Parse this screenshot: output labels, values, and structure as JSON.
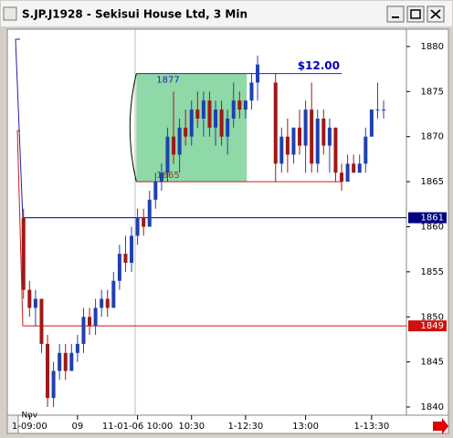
{
  "window": {
    "title": "S.JP.J1928 - Sekisui House Ltd, 3 Min"
  },
  "chart_data": {
    "type": "candlestick",
    "x": [
      0,
      1,
      2,
      3,
      4,
      5,
      6,
      7,
      8,
      9,
      10,
      11,
      12,
      13,
      14,
      15,
      16,
      17,
      18,
      19,
      20,
      21,
      22,
      23,
      24,
      25,
      26,
      27,
      28,
      29,
      30,
      31,
      32,
      33,
      34,
      35,
      36,
      37,
      38,
      39,
      42,
      43,
      44,
      45,
      46,
      47,
      48,
      49,
      50,
      51,
      52,
      53,
      54,
      55,
      56,
      57,
      58,
      59,
      60
    ],
    "open": [
      1861,
      1853,
      1851,
      1852,
      1847,
      1841,
      1844,
      1846,
      1844,
      1846,
      1847,
      1850,
      1849,
      1851,
      1852,
      1851,
      1854,
      1857,
      1856,
      1859,
      1861,
      1860,
      1863,
      1865,
      1866,
      1870,
      1868,
      1871,
      1870,
      1873,
      1872,
      1874,
      1871,
      1873,
      1870,
      1872,
      1874,
      1873,
      1874,
      1876,
      1876,
      1867,
      1870,
      1868,
      1871,
      1869,
      1873,
      1867,
      1872,
      1869,
      1871,
      1866,
      1865,
      1867,
      1866,
      1867,
      1870,
      1873,
      1873
    ],
    "high": [
      1862,
      1854,
      1853,
      1852,
      1848,
      1845,
      1847,
      1847,
      1847,
      1848,
      1851,
      1851,
      1852,
      1853,
      1853,
      1855,
      1858,
      1859,
      1860,
      1862,
      1862,
      1864,
      1866,
      1867,
      1871,
      1875,
      1872,
      1873,
      1874,
      1875,
      1875,
      1875,
      1874,
      1874,
      1873,
      1876,
      1875,
      1874,
      1877,
      1879,
      1877,
      1871,
      1872,
      1871,
      1873,
      1874,
      1876,
      1873,
      1873,
      1872,
      1871,
      1867,
      1868,
      1868,
      1868,
      1871,
      1873,
      1876,
      1874
    ],
    "low": [
      1852,
      1850,
      1849,
      1846,
      1840,
      1840,
      1843,
      1843,
      1844,
      1845,
      1846,
      1848,
      1848,
      1850,
      1850,
      1851,
      1853,
      1855,
      1855,
      1858,
      1859,
      1860,
      1862,
      1864,
      1865,
      1867,
      1866,
      1869,
      1869,
      1871,
      1870,
      1870,
      1869,
      1869,
      1868,
      1871,
      1872,
      1872,
      1873,
      1874,
      1865,
      1866,
      1866,
      1867,
      1868,
      1866,
      1866,
      1866,
      1868,
      1866,
      1865,
      1864,
      1865,
      1866,
      1866,
      1866,
      1870,
      1872,
      1872
    ],
    "close": [
      1853,
      1851,
      1852,
      1847,
      1841,
      1844,
      1846,
      1844,
      1846,
      1847,
      1850,
      1849,
      1851,
      1852,
      1851,
      1854,
      1857,
      1856,
      1859,
      1861,
      1860,
      1863,
      1865,
      1866,
      1870,
      1868,
      1871,
      1870,
      1873,
      1872,
      1874,
      1871,
      1873,
      1870,
      1872,
      1874,
      1873,
      1874,
      1876,
      1878,
      1867,
      1870,
      1868,
      1871,
      1869,
      1873,
      1867,
      1872,
      1869,
      1871,
      1866,
      1865,
      1867,
      1866,
      1867,
      1870,
      1873,
      1873,
      1873
    ],
    "up_color": "#2040b0",
    "down_color": "#a01818",
    "ylim": [
      1839.09,
      1881.92
    ],
    "yticks": [
      1840,
      1845,
      1850,
      1855,
      1860,
      1865,
      1870,
      1875,
      1880
    ],
    "xlim": [
      -2.7,
      63.8
    ],
    "xticks": [
      {
        "value": 1,
        "label": "1-09:00"
      },
      {
        "value": 9,
        "label": "09"
      },
      {
        "value": 19,
        "label": "11-01-06 10:00"
      },
      {
        "value": 28,
        "label": "10:30"
      },
      {
        "value": 37,
        "label": "1-12:30"
      },
      {
        "value": 47,
        "label": "13:00"
      },
      {
        "value": 58,
        "label": "1-13:30"
      }
    ],
    "date_label": "Nov",
    "levels": [
      {
        "value": 1861,
        "color": "#000080"
      },
      {
        "value": 1849,
        "color": "#d01010"
      }
    ],
    "range": {
      "high": 1877,
      "low": 1865,
      "start": 18.8,
      "end": 37.2,
      "color": "#8fd8a8",
      "difference": {
        "value": 12,
        "label": "$12.00"
      }
    }
  }
}
